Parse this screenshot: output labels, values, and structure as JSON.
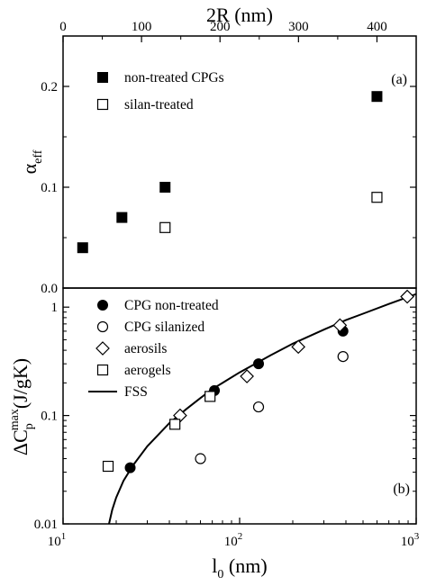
{
  "chart_data": [
    {
      "type": "scatter",
      "panel_label": "(a)",
      "top_axis": {
        "label": "2R (nm)",
        "range": [
          0,
          450
        ],
        "ticks": [
          0,
          100,
          200,
          300,
          400
        ],
        "tick_labels": [
          "0",
          "100",
          "200",
          "300",
          "400"
        ]
      },
      "y_axis": {
        "label_main": "α",
        "label_sub": "eff",
        "range": [
          0,
          0.25
        ],
        "ticks": [
          0.0,
          0.1,
          0.2
        ],
        "tick_labels": [
          "0.0",
          "0.1",
          "0.2"
        ]
      },
      "legend_placement": "top-left",
      "series": [
        {
          "name": "non-treated CPGs",
          "marker": "filled-square",
          "points": [
            [
              25,
              0.04
            ],
            [
              75,
              0.07
            ],
            [
              130,
              0.1
            ],
            [
              400,
              0.19
            ]
          ]
        },
        {
          "name": "silan-treated",
          "marker": "open-square",
          "points": [
            [
              130,
              0.06
            ],
            [
              400,
              0.09
            ]
          ]
        }
      ]
    },
    {
      "type": "scatter",
      "panel_label": "(b)",
      "x_axis": {
        "label_main": "l",
        "label_sub": "0",
        "label_unit": " (nm)",
        "scale": "log",
        "range": [
          10,
          1000
        ],
        "ticks": [
          10,
          100,
          1000
        ],
        "tick_labels": [
          {
            "base": "10",
            "exp": "1"
          },
          {
            "base": "10",
            "exp": "2"
          },
          {
            "base": "10",
            "exp": "3"
          }
        ]
      },
      "y_axis": {
        "label_prefix": "ΔC",
        "label_sub": "p",
        "label_sup": "max",
        "label_unit": "(J/gK)",
        "scale": "log",
        "range": [
          0.01,
          1.5
        ],
        "ticks": [
          0.01,
          0.1,
          1
        ],
        "tick_labels": [
          "0.01",
          "0.1",
          "1"
        ]
      },
      "legend_placement": "top-left",
      "series": [
        {
          "name": "CPG non-treated",
          "marker": "filled-circle",
          "points": [
            [
              24,
              0.033
            ],
            [
              72,
              0.17
            ],
            [
              128,
              0.3
            ],
            [
              385,
              0.6
            ]
          ]
        },
        {
          "name": "CPG silanized",
          "marker": "open-circle",
          "points": [
            [
              60,
              0.04
            ],
            [
              128,
              0.12
            ],
            [
              385,
              0.35
            ]
          ]
        },
        {
          "name": "aerosils",
          "marker": "open-diamond",
          "points": [
            [
              46,
              0.1
            ],
            [
              110,
              0.23
            ],
            [
              215,
              0.43
            ],
            [
              370,
              0.68
            ],
            [
              890,
              1.25
            ]
          ]
        },
        {
          "name": "aerogels",
          "marker": "open-square",
          "points": [
            [
              18,
              0.034
            ],
            [
              43,
              0.083
            ],
            [
              68,
              0.15
            ]
          ]
        },
        {
          "name": "FSS",
          "marker": "line",
          "points": [
            [
              18.2,
              0.01
            ],
            [
              19,
              0.0135
            ],
            [
              20,
              0.0175
            ],
            [
              22,
              0.025
            ],
            [
              25,
              0.035
            ],
            [
              30,
              0.052
            ],
            [
              40,
              0.085
            ],
            [
              50,
              0.115
            ],
            [
              60,
              0.145
            ],
            [
              70,
              0.175
            ],
            [
              80,
              0.2
            ],
            [
              100,
              0.25
            ],
            [
              150,
              0.36
            ],
            [
              200,
              0.46
            ],
            [
              300,
              0.62
            ],
            [
              400,
              0.76
            ],
            [
              500,
              0.87
            ],
            [
              700,
              1.07
            ],
            [
              1000,
              1.32
            ]
          ]
        }
      ]
    }
  ]
}
